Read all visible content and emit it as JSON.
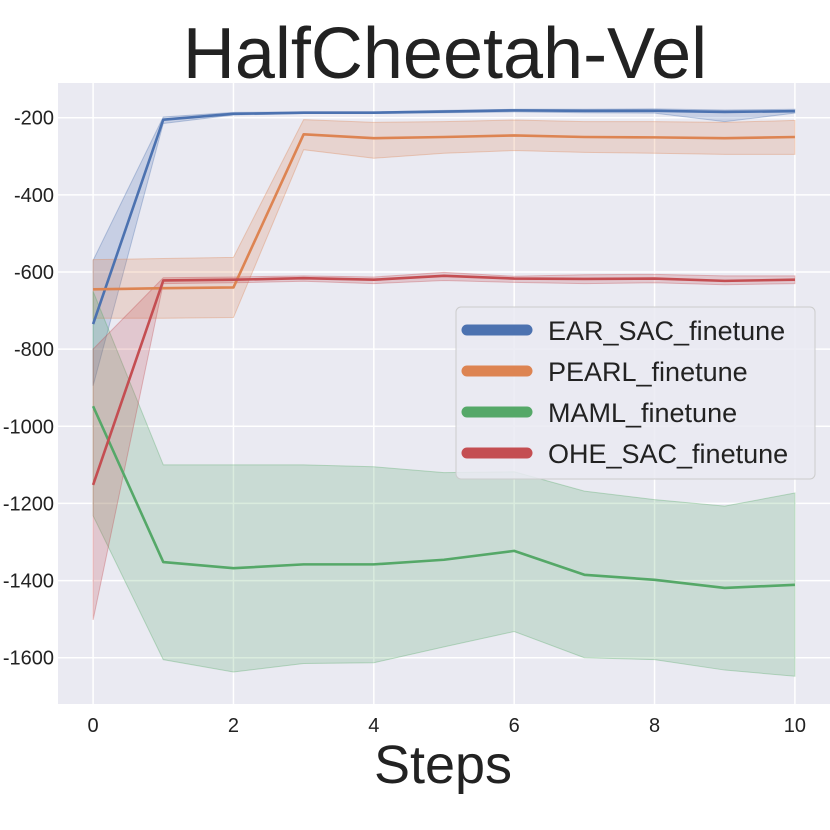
{
  "chart_data": {
    "type": "line",
    "title": "HalfCheetah-Vel",
    "xlabel": "Steps",
    "ylabel": "",
    "xlim": [
      -0.5,
      10.5
    ],
    "ylim": [
      -1720,
      -110
    ],
    "xticks": [
      0,
      2,
      4,
      6,
      8,
      10
    ],
    "xtick_labels": [
      "0",
      "2",
      "4",
      "6",
      "8",
      "10"
    ],
    "yticks": [
      -200,
      -400,
      -600,
      -800,
      -1000,
      -1200,
      -1400,
      -1600
    ],
    "ytick_labels": [
      "-200",
      "-400",
      "-600",
      "-800",
      "-1000",
      "-1200",
      "-1400",
      "-1600"
    ],
    "grid": true,
    "legend_position": "center-right",
    "x": [
      0,
      1,
      2,
      3,
      4,
      5,
      6,
      7,
      8,
      9,
      10
    ],
    "series": [
      {
        "name": "EAR_SAC_finetune",
        "color": "#4c72b0",
        "values": [
          -735,
          -205,
          -190,
          -187,
          -187,
          -184,
          -181,
          -182,
          -182,
          -185,
          -183
        ],
        "lower": [
          -895,
          -215,
          -193,
          -189,
          -189,
          -187,
          -185,
          -187,
          -188,
          -210,
          -188
        ],
        "upper": [
          -570,
          -198,
          -186,
          -185,
          -185,
          -181,
          -178,
          -178,
          -177,
          -180,
          -178
        ]
      },
      {
        "name": "PEARL_finetune",
        "color": "#dd8452",
        "values": [
          -645,
          -642,
          -640,
          -243,
          -253,
          -250,
          -246,
          -250,
          -251,
          -253,
          -250
        ],
        "lower": [
          -720,
          -720,
          -718,
          -283,
          -305,
          -292,
          -285,
          -290,
          -292,
          -295,
          -295
        ],
        "upper": [
          -568,
          -565,
          -562,
          -205,
          -212,
          -210,
          -206,
          -210,
          -210,
          -212,
          -207
        ]
      },
      {
        "name": "MAML_finetune",
        "color": "#55a868",
        "values": [
          -948,
          -1352,
          -1368,
          -1358,
          -1358,
          -1346,
          -1323,
          -1385,
          -1398,
          -1419,
          -1411
        ],
        "lower": [
          -1232,
          -1605,
          -1637,
          -1615,
          -1613,
          -1572,
          -1532,
          -1600,
          -1605,
          -1632,
          -1648
        ],
        "upper": [
          -650,
          -1100,
          -1100,
          -1100,
          -1105,
          -1120,
          -1118,
          -1168,
          -1190,
          -1207,
          -1173
        ]
      },
      {
        "name": "OHE_SAC_finetune",
        "color": "#c44e52",
        "values": [
          -1152,
          -622,
          -620,
          -616,
          -620,
          -610,
          -617,
          -618,
          -617,
          -623,
          -620
        ],
        "lower": [
          -1502,
          -630,
          -628,
          -624,
          -630,
          -622,
          -627,
          -630,
          -628,
          -633,
          -630
        ],
        "upper": [
          -800,
          -615,
          -613,
          -610,
          -613,
          -601,
          -611,
          -607,
          -606,
          -610,
          -610
        ]
      }
    ]
  }
}
